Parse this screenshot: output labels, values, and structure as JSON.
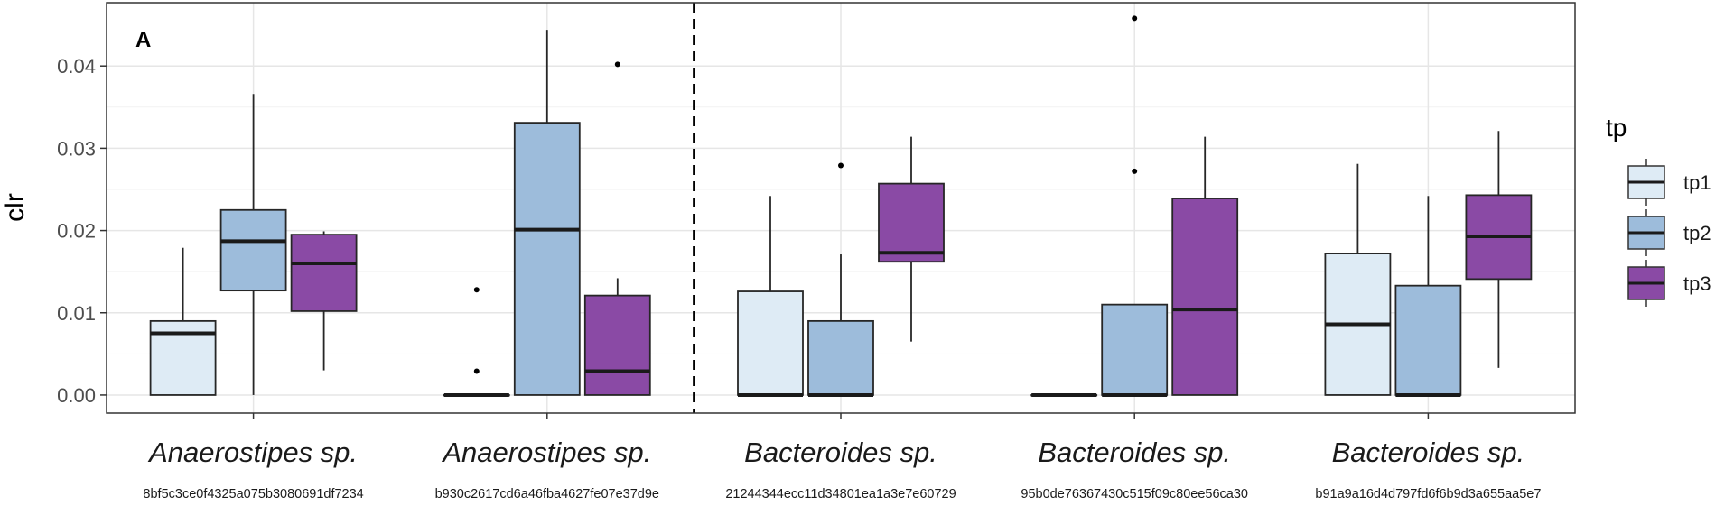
{
  "chart_data": {
    "type": "box",
    "panel_label": "A",
    "ylabel": "clr",
    "xlabel": "",
    "ylim": [
      -0.0022,
      0.0477
    ],
    "yticks": [
      0.0,
      0.01,
      0.02,
      0.03,
      0.04
    ],
    "ytick_labels": [
      "0.00",
      "0.01",
      "0.02",
      "0.03",
      "0.04"
    ],
    "grid": true,
    "legend": {
      "title": "tp",
      "position": "right",
      "entries": [
        {
          "name": "tp1",
          "color": "#deebf5"
        },
        {
          "name": "tp2",
          "color": "#9dbcdb"
        },
        {
          "name": "tp3",
          "color": "#8a4aa5"
        }
      ]
    },
    "divider_after_category": 1,
    "categories": [
      {
        "label": "Anaerostipes sp.",
        "id": "8bf5c3ce0f4325a075b3080691df7234",
        "boxes": [
          {
            "series": "tp1",
            "min": 0.0,
            "q1": 0.0,
            "median": 0.0075,
            "q3": 0.009,
            "max": 0.0179,
            "outliers": []
          },
          {
            "series": "tp2",
            "min": 0.0,
            "q1": 0.0127,
            "median": 0.0187,
            "q3": 0.0225,
            "max": 0.0366,
            "outliers": []
          },
          {
            "series": "tp3",
            "min": 0.003,
            "q1": 0.0102,
            "median": 0.016,
            "q3": 0.0195,
            "max": 0.0199,
            "outliers": []
          }
        ]
      },
      {
        "label": "Anaerostipes sp.",
        "id": "b930c2617cd6a46fba4627fe07e37d9e",
        "boxes": [
          {
            "series": "tp1",
            "min": 0.0,
            "q1": 0.0,
            "median": 0.0,
            "q3": 0.0,
            "max": 0.0,
            "outliers": [
              0.0128,
              0.0029
            ]
          },
          {
            "series": "tp2",
            "min": 0.0,
            "q1": 0.0,
            "median": 0.0201,
            "q3": 0.0331,
            "max": 0.0444,
            "outliers": []
          },
          {
            "series": "tp3",
            "min": 0.0,
            "q1": 0.0,
            "median": 0.0029,
            "q3": 0.0121,
            "max": 0.0142,
            "outliers": [
              0.0402
            ]
          }
        ]
      },
      {
        "label": "Bacteroides sp.",
        "id": "21244344ecc11d34801ea1a3e7e60729",
        "boxes": [
          {
            "series": "tp1",
            "min": 0.0,
            "q1": 0.0,
            "median": 0.0,
            "q3": 0.0126,
            "max": 0.0242,
            "outliers": []
          },
          {
            "series": "tp2",
            "min": 0.0,
            "q1": 0.0,
            "median": 0.0,
            "q3": 0.009,
            "max": 0.0171,
            "outliers": [
              0.0279
            ]
          },
          {
            "series": "tp3",
            "min": 0.0065,
            "q1": 0.0162,
            "median": 0.0173,
            "q3": 0.0257,
            "max": 0.0314,
            "outliers": []
          }
        ]
      },
      {
        "label": "Bacteroides sp.",
        "id": "95b0de76367430c515f09c80ee56ca30",
        "boxes": [
          {
            "series": "tp1",
            "min": 0.0,
            "q1": 0.0,
            "median": 0.0,
            "q3": 0.0,
            "max": 0.0,
            "outliers": []
          },
          {
            "series": "tp2",
            "min": 0.0,
            "q1": 0.0,
            "median": 0.0,
            "q3": 0.011,
            "max": 0.011,
            "outliers": [
              0.0458,
              0.0272
            ]
          },
          {
            "series": "tp3",
            "min": 0.0,
            "q1": 0.0,
            "median": 0.0104,
            "q3": 0.0239,
            "max": 0.0314,
            "outliers": []
          }
        ]
      },
      {
        "label": "Bacteroides sp.",
        "id": "b91a9a16d4d797fd6f6b9d3a655aa5e7",
        "boxes": [
          {
            "series": "tp1",
            "min": 0.0,
            "q1": 0.0,
            "median": 0.0086,
            "q3": 0.0172,
            "max": 0.0281,
            "outliers": []
          },
          {
            "series": "tp2",
            "min": 0.0,
            "q1": 0.0,
            "median": 0.0,
            "q3": 0.0133,
            "max": 0.0242,
            "outliers": []
          },
          {
            "series": "tp3",
            "min": 0.0033,
            "q1": 0.0141,
            "median": 0.0193,
            "q3": 0.0243,
            "max": 0.0321,
            "outliers": []
          }
        ]
      }
    ]
  }
}
